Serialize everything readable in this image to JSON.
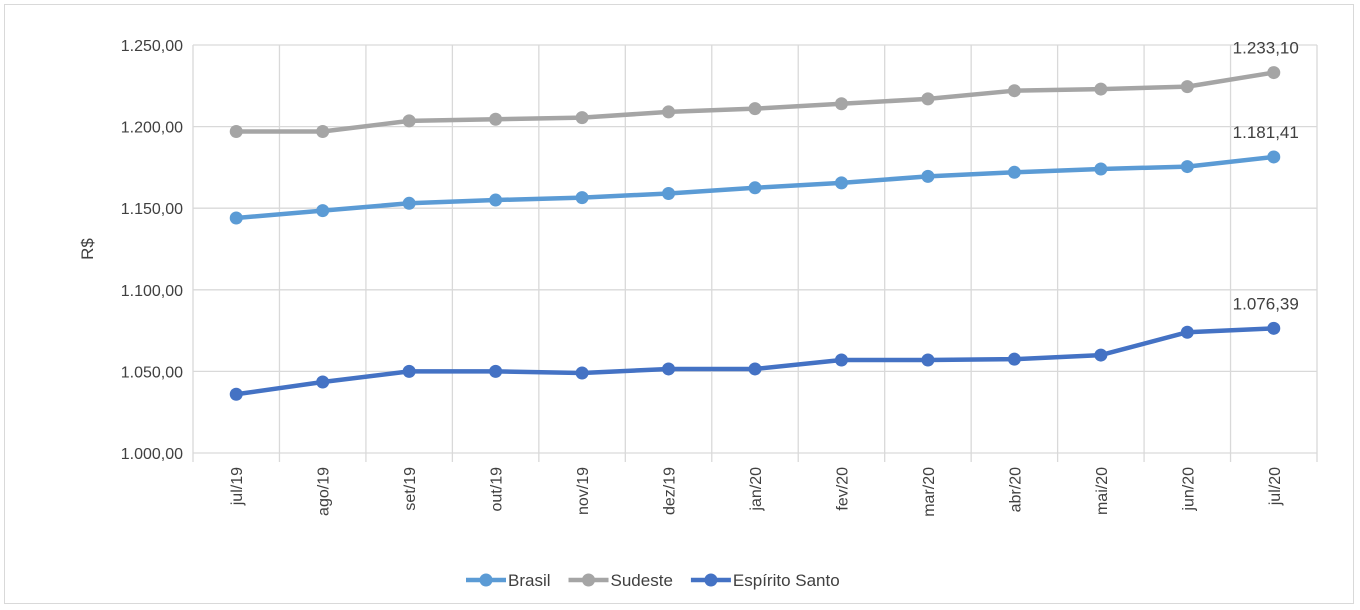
{
  "chart_data": {
    "type": "line",
    "title": "",
    "xlabel": "",
    "ylabel": "R$",
    "ylim": [
      1000,
      1250
    ],
    "y_ticks": [
      1000,
      1050,
      1100,
      1150,
      1200,
      1250
    ],
    "y_tick_labels": [
      "1.000,00",
      "1.050,00",
      "1.100,00",
      "1.150,00",
      "1.200,00",
      "1.250,00"
    ],
    "grid": true,
    "legend_position": "bottom",
    "categories": [
      "jul/19",
      "ago/19",
      "set/19",
      "out/19",
      "nov/19",
      "dez/19",
      "jan/20",
      "fev/20",
      "mar/20",
      "abr/20",
      "mai/20",
      "jun/20",
      "jul/20"
    ],
    "series": [
      {
        "name": "Brasil",
        "color": "#5b9bd5",
        "values": [
          1144,
          1148.5,
          1153,
          1155,
          1156.5,
          1159,
          1162.5,
          1165.5,
          1169.5,
          1172,
          1174,
          1175.5,
          1181.41
        ],
        "end_label": "1.181,41"
      },
      {
        "name": "Sudeste",
        "color": "#a5a5a5",
        "values": [
          1197,
          1197,
          1203.5,
          1204.5,
          1205.5,
          1209,
          1211,
          1214,
          1217,
          1222,
          1223,
          1224.5,
          1233.1
        ],
        "end_label": "1.233,10"
      },
      {
        "name": "Espírito Santo",
        "color": "#4472c4",
        "values": [
          1036,
          1043.5,
          1050,
          1050,
          1049,
          1051.5,
          1051.5,
          1057,
          1057,
          1057.5,
          1060,
          1074,
          1076.39
        ],
        "end_label": "1.076,39"
      }
    ]
  }
}
